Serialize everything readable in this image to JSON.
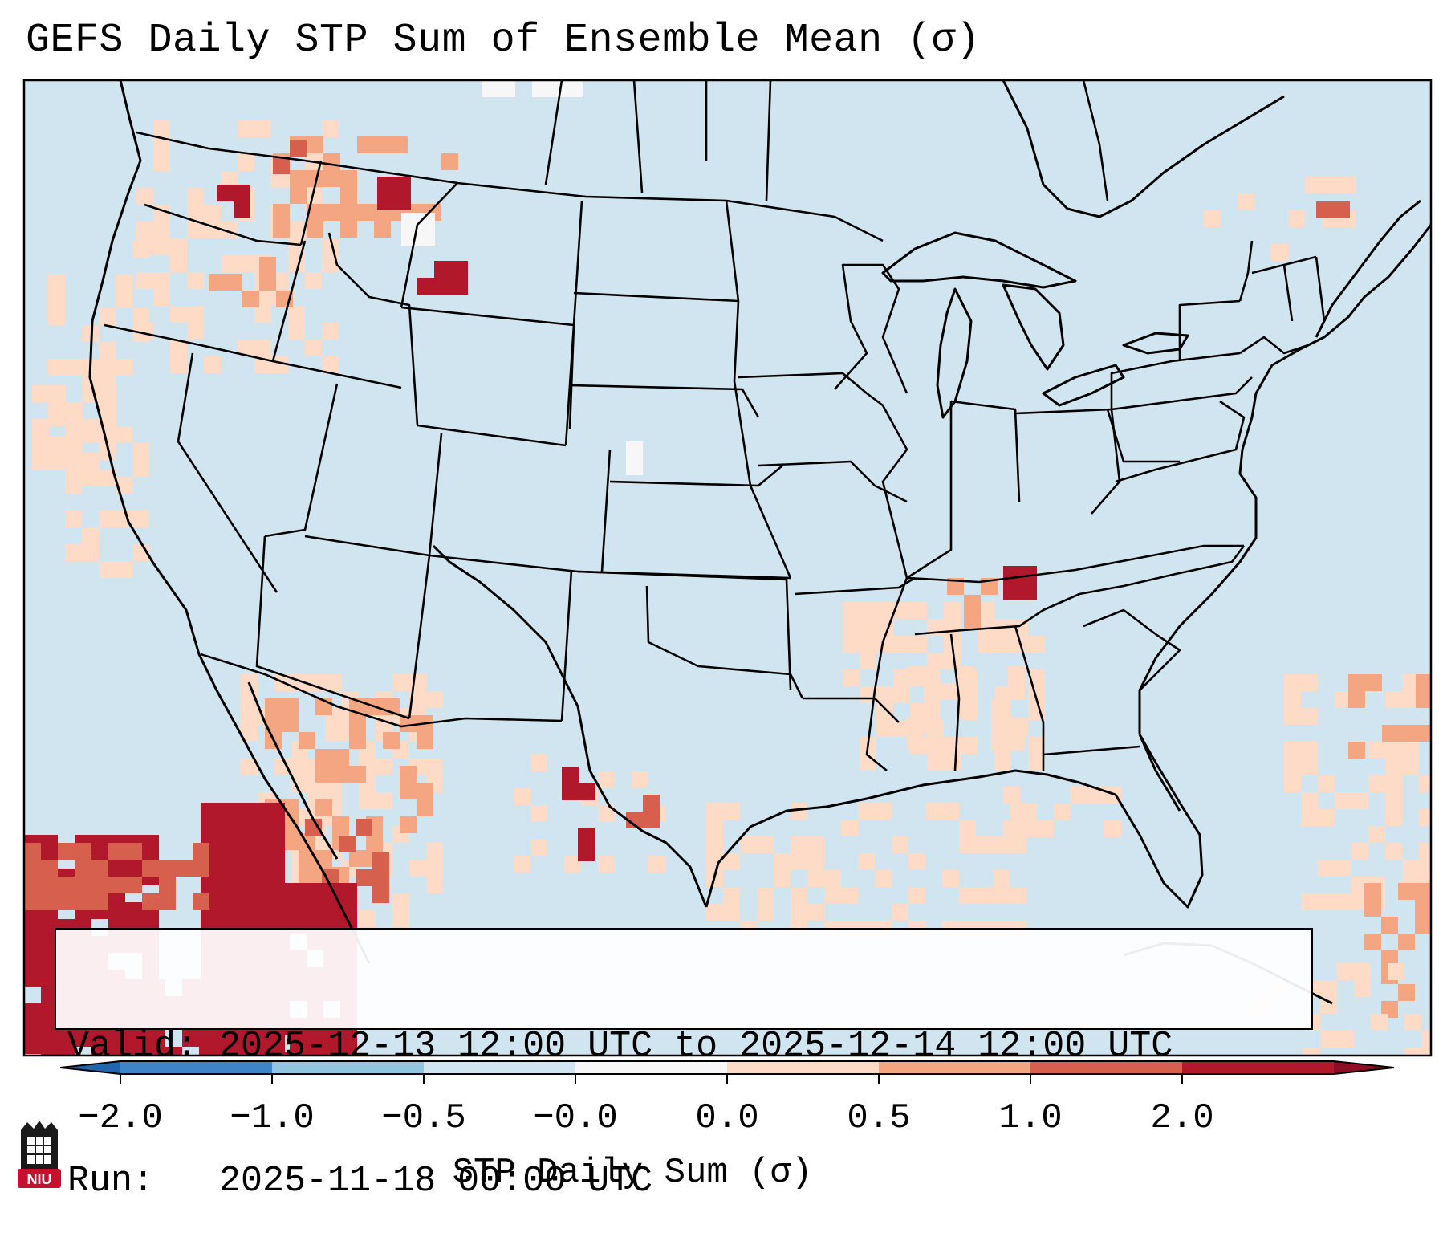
{
  "title": "GEFS Daily STP Sum of Ensemble Mean (σ)",
  "legend": {
    "valid_label": "Valid:",
    "valid_value": "2025-12-13 12:00 UTC to 2025-12-14 12:00 UTC",
    "run_label": "Run:",
    "run_value": "2025-11-18 00:00 UTC"
  },
  "colorbar": {
    "label": "STP Daily Sum (σ)",
    "ticks": [
      "−2.0",
      "−1.0",
      "−0.5",
      "−0.0",
      "0.0",
      "0.5",
      "1.0",
      "2.0"
    ],
    "colors": [
      "#3d85c6",
      "#92c5de",
      "#d1e5f0",
      "#f7f7f7",
      "#fddbc7",
      "#f4a582",
      "#d6604d",
      "#b2182b"
    ],
    "extend": "both"
  },
  "map": {
    "background_color": "#d1e5f0",
    "region": "Continental United States, southern Canada, northern Mexico"
  },
  "logo": {
    "text": "NIU",
    "icon": "niu-logo-icon"
  }
}
